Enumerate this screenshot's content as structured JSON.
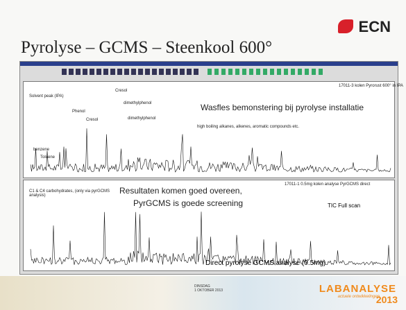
{
  "logo": "ECN",
  "title": "Pyrolyse – GCMS – Steenkool 600°",
  "top_panel": {
    "header": "17011-3 kolen Pyrorust 600° in IPA",
    "peak_labels": [
      "Solvent peak (IPA)",
      "Cresol",
      "dimethylphenol",
      "Phenol",
      "Cresol",
      "dimethylphenol",
      "benzene",
      "Toluene"
    ],
    "range_label": "high boiling alkanes, alkenes, aromatic compounds etc.",
    "annotation": "Wasfles bemonstering bij pyrolyse installatie"
  },
  "bottom_panel": {
    "header": "17011-1 0.5mg kolen analyse PyrGCMS direct",
    "peak_label": "C1 & C4 carbohydrates, (only via pyrGCMS analysis)",
    "annotation_lines": [
      "Resultaten komen goed overeen,",
      "PyrGCMS is goede screening"
    ],
    "note": "TIC Full scan",
    "caption": "Direct pyrolyse GCMS analyse (0.5mg)"
  },
  "footer": {
    "date": [
      "DINSDAG",
      "1 OKTOBER 2013"
    ],
    "brand": "LABANALYSE",
    "tagline": "actuele ontwikkelingen",
    "year": "2013"
  }
}
